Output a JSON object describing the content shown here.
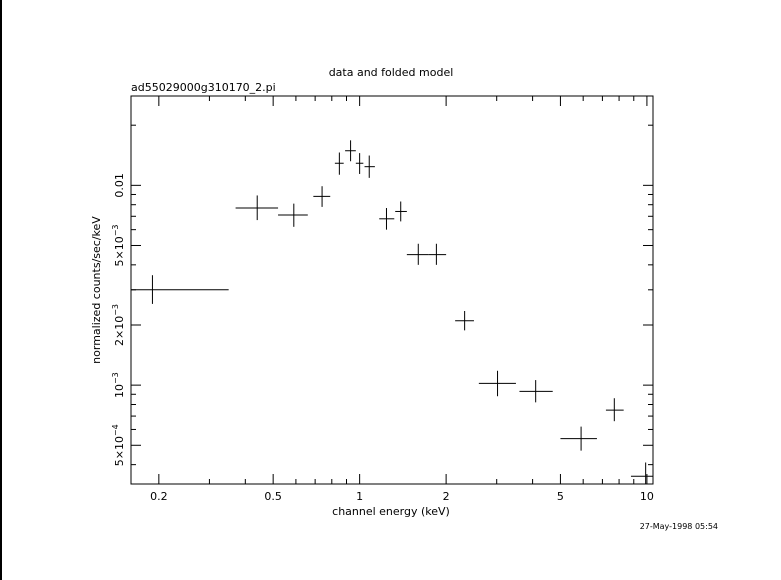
{
  "chart_data": {
    "type": "scatter",
    "title": "data and folded model",
    "subtitle": "ad55029000g310170_2.pi",
    "xlabel": "channel energy (keV)",
    "ylabel": "normalized counts/sec/keV",
    "x_scale": "log",
    "y_scale": "log",
    "xlim": [
      0.16,
      10.5
    ],
    "ylim": [
      0.00032,
      0.028
    ],
    "x_ticks": [
      {
        "value": 0.2,
        "label": "0.2"
      },
      {
        "value": 0.5,
        "label": "0.5"
      },
      {
        "value": 1,
        "label": "1"
      },
      {
        "value": 2,
        "label": "2"
      },
      {
        "value": 5,
        "label": "5"
      },
      {
        "value": 10,
        "label": "10"
      }
    ],
    "y_ticks": [
      {
        "value": 0.0005,
        "mantissa": "5×10",
        "exponent": "−4"
      },
      {
        "value": 0.001,
        "mantissa": "10",
        "exponent": "−3"
      },
      {
        "value": 0.002,
        "mantissa": "2×10",
        "exponent": "−3"
      },
      {
        "value": 0.005,
        "mantissa": "5×10",
        "exponent": "−3"
      },
      {
        "value": 0.01,
        "mantissa": "0.01",
        "exponent": ""
      }
    ],
    "grid": false,
    "points": [
      {
        "x": 0.19,
        "y": 0.003,
        "xlo": 0.16,
        "xhi": 0.35,
        "ylo": 0.00255,
        "yhi": 0.00355
      },
      {
        "x": 0.44,
        "y": 0.0077,
        "xlo": 0.37,
        "xhi": 0.52,
        "ylo": 0.0067,
        "yhi": 0.0089
      },
      {
        "x": 0.59,
        "y": 0.0071,
        "xlo": 0.52,
        "xhi": 0.66,
        "ylo": 0.0062,
        "yhi": 0.0081
      },
      {
        "x": 0.74,
        "y": 0.0088,
        "xlo": 0.69,
        "xhi": 0.79,
        "ylo": 0.0078,
        "yhi": 0.0099
      },
      {
        "x": 0.85,
        "y": 0.0129,
        "xlo": 0.82,
        "xhi": 0.88,
        "ylo": 0.0113,
        "yhi": 0.0146
      },
      {
        "x": 0.93,
        "y": 0.0149,
        "xlo": 0.89,
        "xhi": 0.97,
        "ylo": 0.0132,
        "yhi": 0.0168
      },
      {
        "x": 1.0,
        "y": 0.0129,
        "xlo": 0.97,
        "xhi": 1.03,
        "ylo": 0.0114,
        "yhi": 0.0145
      },
      {
        "x": 1.08,
        "y": 0.0124,
        "xlo": 1.04,
        "xhi": 1.13,
        "ylo": 0.0109,
        "yhi": 0.0141
      },
      {
        "x": 1.24,
        "y": 0.0068,
        "xlo": 1.17,
        "xhi": 1.32,
        "ylo": 0.006,
        "yhi": 0.0077
      },
      {
        "x": 1.39,
        "y": 0.0074,
        "xlo": 1.33,
        "xhi": 1.46,
        "ylo": 0.0066,
        "yhi": 0.0083
      },
      {
        "x": 1.6,
        "y": 0.0045,
        "xlo": 1.46,
        "xhi": 1.74,
        "ylo": 0.004,
        "yhi": 0.0051
      },
      {
        "x": 1.85,
        "y": 0.0045,
        "xlo": 1.74,
        "xhi": 2.0,
        "ylo": 0.004,
        "yhi": 0.0051
      },
      {
        "x": 2.32,
        "y": 0.0021,
        "xlo": 2.15,
        "xhi": 2.5,
        "ylo": 0.00188,
        "yhi": 0.00235
      },
      {
        "x": 3.02,
        "y": 0.00102,
        "xlo": 2.6,
        "xhi": 3.5,
        "ylo": 0.00088,
        "yhi": 0.00118
      },
      {
        "x": 4.1,
        "y": 0.00093,
        "xlo": 3.6,
        "xhi": 4.7,
        "ylo": 0.00082,
        "yhi": 0.00106
      },
      {
        "x": 5.9,
        "y": 0.00054,
        "xlo": 5.0,
        "xhi": 6.7,
        "ylo": 0.00047,
        "yhi": 0.00062
      },
      {
        "x": 7.7,
        "y": 0.00075,
        "xlo": 7.2,
        "xhi": 8.3,
        "ylo": 0.00066,
        "yhi": 0.00086
      },
      {
        "x": 9.9,
        "y": 0.00035,
        "xlo": 8.8,
        "xhi": 10.5,
        "ylo": 0.00031,
        "yhi": 0.00041
      }
    ]
  },
  "footer": {
    "timestamp": "27-May-1998 05:54"
  }
}
